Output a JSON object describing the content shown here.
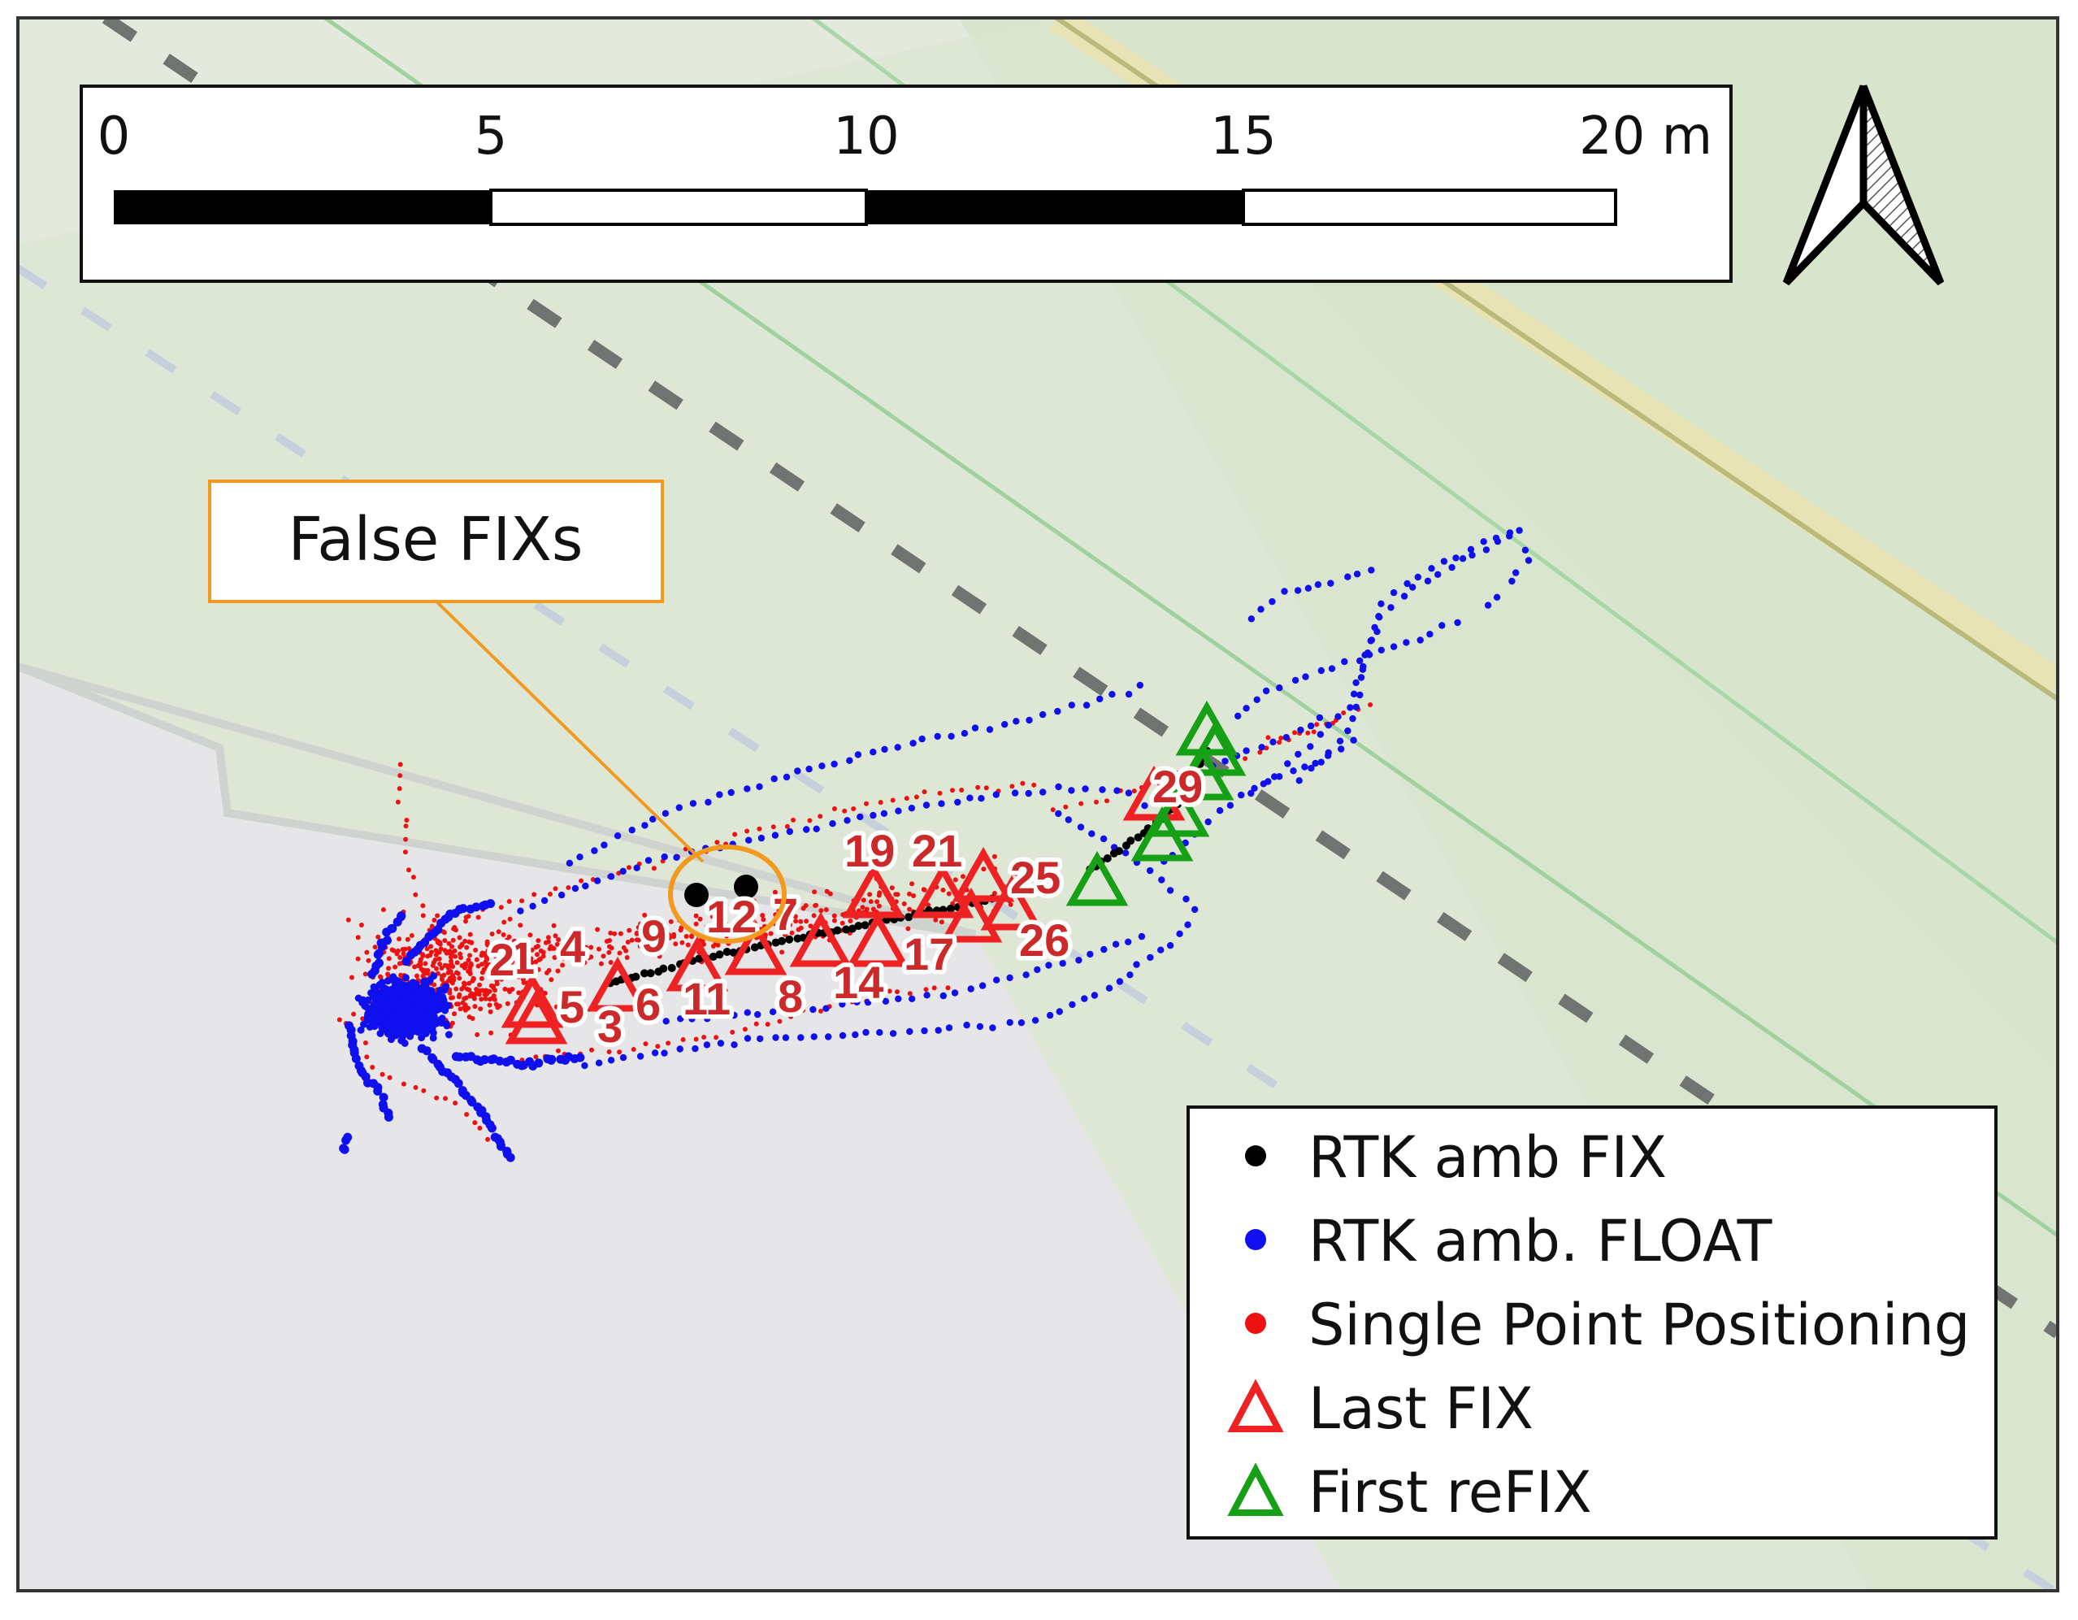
{
  "colors": {
    "fix": "#000000",
    "float": "#1010ee",
    "single": "#ee1111",
    "last_fix": "#ee2222",
    "first_refix": "#16a016",
    "callout": "#f29a1f",
    "point_label": "#cc2a2a"
  },
  "scale_bar": {
    "tick_labels": [
      "0",
      "5",
      "10",
      "15",
      "20 m"
    ]
  },
  "north_arrow": {
    "icon": "north-arrow-icon"
  },
  "callout": {
    "label": "False FIXs"
  },
  "point_labels": [
    "1",
    "2",
    "3",
    "4",
    "5",
    "6",
    "7",
    "8",
    "9",
    "11",
    "12",
    "14",
    "17",
    "19",
    "21",
    "25",
    "26",
    "29"
  ],
  "legend": {
    "items": [
      {
        "label": "RTK amb FIX",
        "symbol": "dot",
        "color": "#000000"
      },
      {
        "label": "RTK amb. FLOAT",
        "symbol": "dot",
        "color": "#1010ee"
      },
      {
        "label": "Single Point Positioning",
        "symbol": "dot",
        "color": "#ee1111"
      },
      {
        "label": "Last FIX",
        "symbol": "triangle",
        "color": "#ee2222"
      },
      {
        "label": "First reFIX",
        "symbol": "triangle",
        "color": "#16a016"
      }
    ]
  }
}
